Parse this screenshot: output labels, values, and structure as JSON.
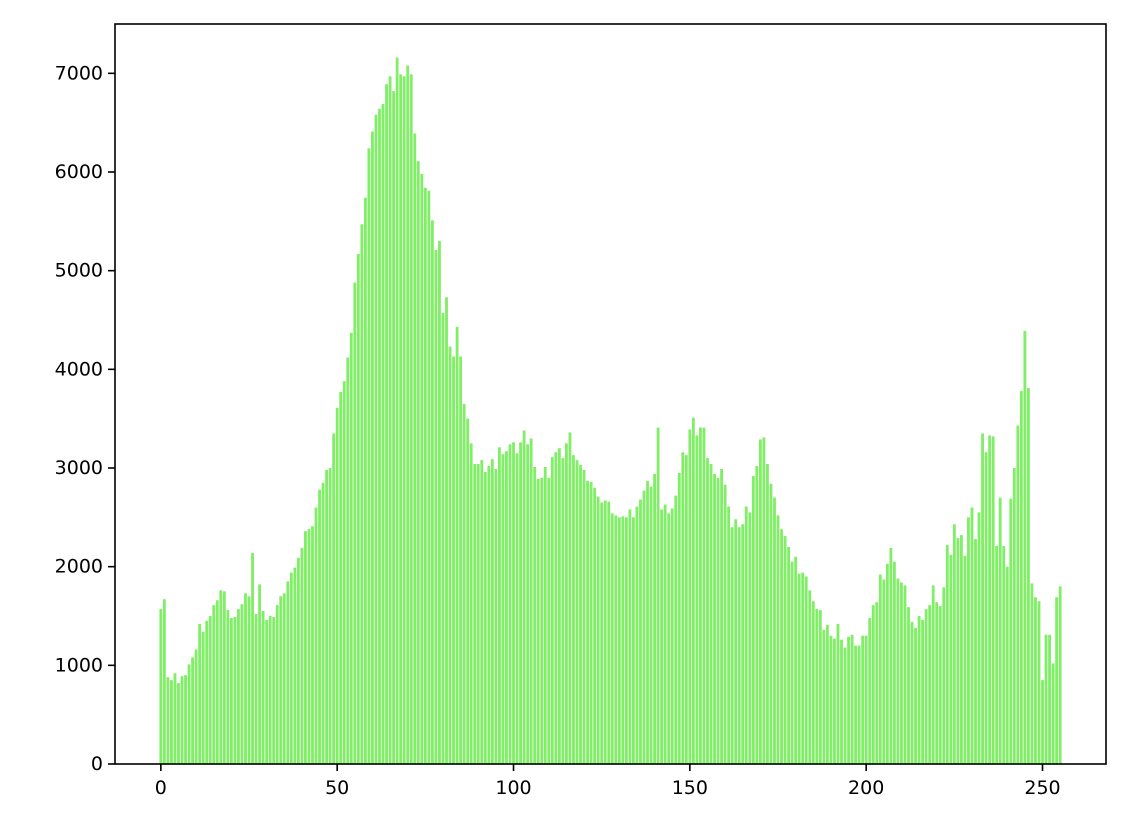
{
  "chart_data": {
    "type": "bar",
    "title": "",
    "xlabel": "",
    "ylabel": "",
    "bar_color": "#80ee66",
    "grid": false,
    "legend": "none",
    "xlim": [
      -13,
      268
    ],
    "ylim": [
      0,
      7500
    ],
    "xticks": [
      0,
      50,
      100,
      150,
      200,
      250
    ],
    "yticks": [
      0,
      1000,
      2000,
      3000,
      4000,
      5000,
      6000,
      7000
    ],
    "x": [
      0,
      1,
      2,
      3,
      4,
      5,
      6,
      7,
      8,
      9,
      10,
      11,
      12,
      13,
      14,
      15,
      16,
      17,
      18,
      19,
      20,
      21,
      22,
      23,
      24,
      25,
      26,
      27,
      28,
      29,
      30,
      31,
      32,
      33,
      34,
      35,
      36,
      37,
      38,
      39,
      40,
      41,
      42,
      43,
      44,
      45,
      46,
      47,
      48,
      49,
      50,
      51,
      52,
      53,
      54,
      55,
      56,
      57,
      58,
      59,
      60,
      61,
      62,
      63,
      64,
      65,
      66,
      67,
      68,
      69,
      70,
      71,
      72,
      73,
      74,
      75,
      76,
      77,
      78,
      79,
      80,
      81,
      82,
      83,
      84,
      85,
      86,
      87,
      88,
      89,
      90,
      91,
      92,
      93,
      94,
      95,
      96,
      97,
      98,
      99,
      100,
      101,
      102,
      103,
      104,
      105,
      106,
      107,
      108,
      109,
      110,
      111,
      112,
      113,
      114,
      115,
      116,
      117,
      118,
      119,
      120,
      121,
      122,
      123,
      124,
      125,
      126,
      127,
      128,
      129,
      130,
      131,
      132,
      133,
      134,
      135,
      136,
      137,
      138,
      139,
      140,
      141,
      142,
      143,
      144,
      145,
      146,
      147,
      148,
      149,
      150,
      151,
      152,
      153,
      154,
      155,
      156,
      157,
      158,
      159,
      160,
      161,
      162,
      163,
      164,
      165,
      166,
      167,
      168,
      169,
      170,
      171,
      172,
      173,
      174,
      175,
      176,
      177,
      178,
      179,
      180,
      181,
      182,
      183,
      184,
      185,
      186,
      187,
      188,
      189,
      190,
      191,
      192,
      193,
      194,
      195,
      196,
      197,
      198,
      199,
      200,
      201,
      202,
      203,
      204,
      205,
      206,
      207,
      208,
      209,
      210,
      211,
      212,
      213,
      214,
      215,
      216,
      217,
      218,
      219,
      220,
      221,
      222,
      223,
      224,
      225,
      226,
      227,
      228,
      229,
      230,
      231,
      232,
      233,
      234,
      235,
      236,
      237,
      238,
      239,
      240,
      241,
      242,
      243,
      244,
      245,
      246,
      247,
      248,
      249,
      250,
      251,
      252,
      253,
      254,
      255
    ],
    "values": [
      1570,
      1670,
      880,
      850,
      920,
      820,
      890,
      900,
      1010,
      1080,
      1160,
      1420,
      1340,
      1450,
      1500,
      1610,
      1660,
      1760,
      1750,
      1560,
      1480,
      1490,
      1570,
      1620,
      1730,
      1700,
      2140,
      1520,
      1820,
      1550,
      1460,
      1500,
      1490,
      1610,
      1700,
      1730,
      1850,
      1940,
      1990,
      2090,
      2190,
      2360,
      2380,
      2410,
      2600,
      2780,
      2850,
      2980,
      3000,
      3350,
      3610,
      3770,
      3880,
      4120,
      4370,
      4880,
      5170,
      5470,
      5740,
      6240,
      6410,
      6580,
      6640,
      6690,
      6890,
      6970,
      6820,
      7160,
      6990,
      6970,
      7080,
      6990,
      6390,
      6110,
      5980,
      5840,
      5810,
      5510,
      5210,
      5300,
      4570,
      4730,
      4230,
      4130,
      4430,
      4130,
      3650,
      3500,
      3250,
      3040,
      3040,
      3080,
      2960,
      3020,
      3090,
      2990,
      3210,
      3140,
      3170,
      3240,
      3260,
      3150,
      3260,
      3380,
      3240,
      3300,
      3010,
      2890,
      2900,
      3010,
      2900,
      3110,
      3160,
      3200,
      3100,
      3250,
      3360,
      3130,
      3080,
      3030,
      2980,
      2870,
      2860,
      2800,
      2710,
      2650,
      2670,
      2660,
      2540,
      2520,
      2500,
      2510,
      2500,
      2580,
      2500,
      2610,
      2680,
      2770,
      2870,
      2810,
      2940,
      3410,
      2580,
      2630,
      2540,
      2590,
      2720,
      2950,
      3160,
      3130,
      3390,
      3510,
      3330,
      3410,
      3410,
      3100,
      3040,
      2940,
      2900,
      2990,
      2830,
      2610,
      2400,
      2480,
      2400,
      2430,
      2610,
      2550,
      2920,
      3020,
      3290,
      3310,
      3040,
      2840,
      2700,
      2520,
      2380,
      2310,
      2200,
      2050,
      2100,
      1930,
      1940,
      1900,
      1760,
      1650,
      1570,
      1560,
      1360,
      1410,
      1300,
      1270,
      1420,
      1260,
      1180,
      1290,
      1310,
      1200,
      1200,
      1300,
      1300,
      1480,
      1610,
      1640,
      1920,
      1870,
      2030,
      2190,
      2050,
      1880,
      1840,
      1810,
      1590,
      1440,
      1380,
      1500,
      1460,
      1570,
      1610,
      1810,
      1640,
      1600,
      1790,
      2220,
      2120,
      2430,
      2290,
      2320,
      2110,
      2500,
      2600,
      2280,
      2550,
      3350,
      3160,
      3330,
      3320,
      2210,
      2700,
      2210,
      2000,
      2690,
      3000,
      3430,
      3780,
      4390,
      3810,
      1830,
      1690,
      1650,
      850,
      1310,
      1310,
      1020,
      1690,
      1800
    ]
  }
}
